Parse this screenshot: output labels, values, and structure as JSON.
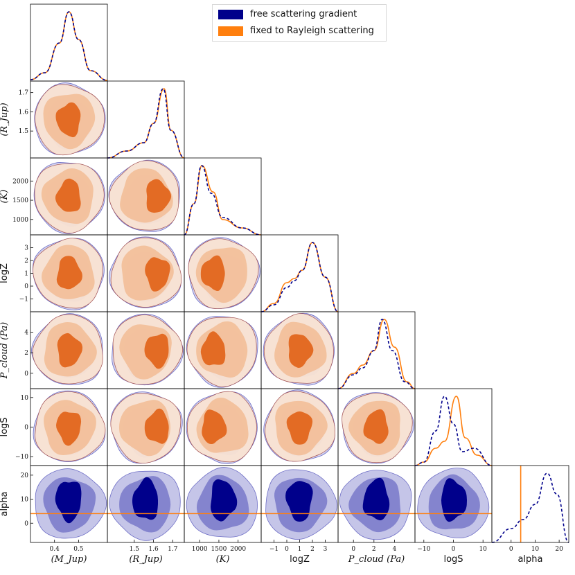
{
  "colors": {
    "free": "#00008b",
    "fixed": "#ff7f0e",
    "free_mid": "#6e6ec6",
    "free_light": "#c5c5e8",
    "fixed_inner": "#e2661d",
    "fixed_mid": "#f2bc94",
    "fixed_light": "#f9e3d3",
    "frame": "#000000"
  },
  "legend": {
    "free": "free scattering gradient",
    "fixed": "fixed to Rayleigh scattering"
  },
  "chart_data": {
    "type": "corner",
    "parameters": [
      {
        "key": "M",
        "label": "(M_Jup)",
        "range": [
          0.3,
          0.62
        ],
        "ticks": [
          0.4,
          0.5
        ],
        "tick_labels": [
          "0.4",
          "0.5"
        ]
      },
      {
        "key": "R",
        "label": "(R_Jup)",
        "range": [
          1.36,
          1.76
        ],
        "ticks": [
          1.5,
          1.6,
          1.7
        ],
        "tick_labels": [
          "1.5",
          "1.6",
          "1.7"
        ]
      },
      {
        "key": "T",
        "label": "(K)",
        "range": [
          600,
          2600
        ],
        "ticks": [
          1000,
          1500,
          2000
        ],
        "tick_labels": [
          "1000",
          "1500",
          "2000"
        ]
      },
      {
        "key": "logZ",
        "label": "logZ",
        "range": [
          -2.0,
          4.0
        ],
        "ticks": [
          -1,
          0,
          1,
          2,
          3
        ],
        "tick_labels": [
          "−1",
          "0",
          "1",
          "2",
          "3"
        ]
      },
      {
        "key": "Pcloud",
        "label": "P_cloud (Pa)",
        "range": [
          -1.5,
          6.0
        ],
        "ticks": [
          0,
          2,
          4
        ],
        "tick_labels": [
          "0",
          "2",
          "4"
        ]
      },
      {
        "key": "logS",
        "label": "logS",
        "range": [
          -13,
          13
        ],
        "ticks": [
          -10,
          0,
          10
        ],
        "tick_labels": [
          "−10",
          "0",
          "10"
        ]
      },
      {
        "key": "alpha",
        "label": "alpha",
        "range": [
          -8,
          24
        ],
        "ticks": [
          0,
          10,
          20
        ],
        "tick_labels": [
          "0",
          "10",
          "20"
        ]
      }
    ],
    "row_axis_labels": [
      "(R_Jup)",
      "(K)",
      "logZ",
      "P_cloud (Pa)",
      "logS",
      "alpha"
    ],
    "row_tick_labels": [
      {
        "ticks": [
          1.5,
          1.6,
          1.7
        ],
        "labels": [
          "1.5",
          "1.6",
          "1.7"
        ]
      },
      {
        "ticks": [
          1000,
          1500,
          2000
        ],
        "labels": [
          "1000",
          "1500",
          "2000"
        ]
      },
      {
        "ticks": [
          -1,
          0,
          1,
          2,
          3
        ],
        "labels": [
          "−1",
          "0",
          "1",
          "2",
          "3"
        ]
      },
      {
        "ticks": [
          0,
          2,
          4
        ],
        "labels": [
          "0",
          "2",
          "4"
        ]
      },
      {
        "ticks": [
          -10,
          0,
          10
        ],
        "labels": [
          "−10",
          "0",
          "10"
        ]
      },
      {
        "ticks": [
          0,
          10,
          20
        ],
        "labels": [
          "0",
          "10",
          "20"
        ]
      }
    ],
    "fixed_alpha_value": 4,
    "marginals": {
      "M": {
        "free": [
          [
            0.3,
            0.02
          ],
          [
            0.36,
            0.12
          ],
          [
            0.42,
            0.55
          ],
          [
            0.46,
            1.0
          ],
          [
            0.5,
            0.6
          ],
          [
            0.55,
            0.15
          ],
          [
            0.62,
            0.01
          ]
        ],
        "fixed": [
          [
            0.3,
            0.02
          ],
          [
            0.36,
            0.12
          ],
          [
            0.42,
            0.55
          ],
          [
            0.46,
            1.0
          ],
          [
            0.5,
            0.6
          ],
          [
            0.55,
            0.15
          ],
          [
            0.62,
            0.01
          ]
        ]
      },
      "R": {
        "free": [
          [
            1.36,
            0.0
          ],
          [
            1.46,
            0.1
          ],
          [
            1.55,
            0.22
          ],
          [
            1.6,
            0.5
          ],
          [
            1.65,
            1.0
          ],
          [
            1.69,
            0.4
          ],
          [
            1.76,
            0.0
          ]
        ],
        "fixed": [
          [
            1.36,
            0.0
          ],
          [
            1.46,
            0.1
          ],
          [
            1.55,
            0.22
          ],
          [
            1.6,
            0.5
          ],
          [
            1.655,
            1.0
          ],
          [
            1.69,
            0.4
          ],
          [
            1.76,
            0.0
          ]
        ]
      },
      "T": {
        "free": [
          [
            600,
            0.0
          ],
          [
            850,
            0.45
          ],
          [
            1050,
            1.0
          ],
          [
            1300,
            0.6
          ],
          [
            1600,
            0.25
          ],
          [
            2100,
            0.1
          ],
          [
            2600,
            0.0
          ]
        ],
        "fixed": [
          [
            600,
            0.0
          ],
          [
            850,
            0.45
          ],
          [
            1060,
            1.0
          ],
          [
            1350,
            0.62
          ],
          [
            1600,
            0.22
          ],
          [
            2100,
            0.1
          ],
          [
            2600,
            0.0
          ]
        ]
      },
      "logZ": {
        "free": [
          [
            -2.0,
            0.0
          ],
          [
            -1.0,
            0.1
          ],
          [
            0.0,
            0.35
          ],
          [
            0.6,
            0.45
          ],
          [
            1.2,
            0.6
          ],
          [
            2.0,
            1.0
          ],
          [
            3.0,
            0.5
          ],
          [
            4.0,
            0.0
          ]
        ],
        "fixed": [
          [
            -2.0,
            0.0
          ],
          [
            -1.0,
            0.12
          ],
          [
            0.0,
            0.42
          ],
          [
            0.6,
            0.48
          ],
          [
            1.2,
            0.6
          ],
          [
            2.0,
            1.0
          ],
          [
            3.0,
            0.5
          ],
          [
            4.0,
            0.0
          ]
        ]
      },
      "Pcloud": {
        "free": [
          [
            -1.5,
            0.0
          ],
          [
            0.0,
            0.2
          ],
          [
            0.9,
            0.3
          ],
          [
            2.0,
            0.55
          ],
          [
            2.8,
            1.0
          ],
          [
            3.8,
            0.55
          ],
          [
            5.0,
            0.1
          ],
          [
            6.0,
            0.0
          ]
        ],
        "fixed": [
          [
            -1.5,
            0.0
          ],
          [
            0.0,
            0.22
          ],
          [
            0.9,
            0.34
          ],
          [
            2.0,
            0.55
          ],
          [
            3.0,
            1.0
          ],
          [
            4.0,
            0.6
          ],
          [
            5.2,
            0.1
          ],
          [
            6.0,
            0.0
          ]
        ]
      },
      "logS": {
        "free": [
          [
            -13,
            0.0
          ],
          [
            -10,
            0.05
          ],
          [
            -6,
            0.5
          ],
          [
            -3,
            1.0
          ],
          [
            0,
            0.6
          ],
          [
            3,
            0.2
          ],
          [
            7,
            0.25
          ],
          [
            13,
            0.0
          ]
        ],
        "fixed": [
          [
            -13,
            0.0
          ],
          [
            -10,
            0.05
          ],
          [
            -6,
            0.25
          ],
          [
            -3,
            0.35
          ],
          [
            1,
            1.0
          ],
          [
            4,
            0.4
          ],
          [
            8,
            0.15
          ],
          [
            13,
            0.0
          ]
        ]
      },
      "alpha": {
        "free": [
          [
            -8,
            0.0
          ],
          [
            0,
            0.2
          ],
          [
            5,
            0.33
          ],
          [
            10,
            0.55
          ],
          [
            15,
            1.0
          ],
          [
            19,
            0.7
          ],
          [
            24,
            0.0
          ]
        ]
      }
    }
  }
}
